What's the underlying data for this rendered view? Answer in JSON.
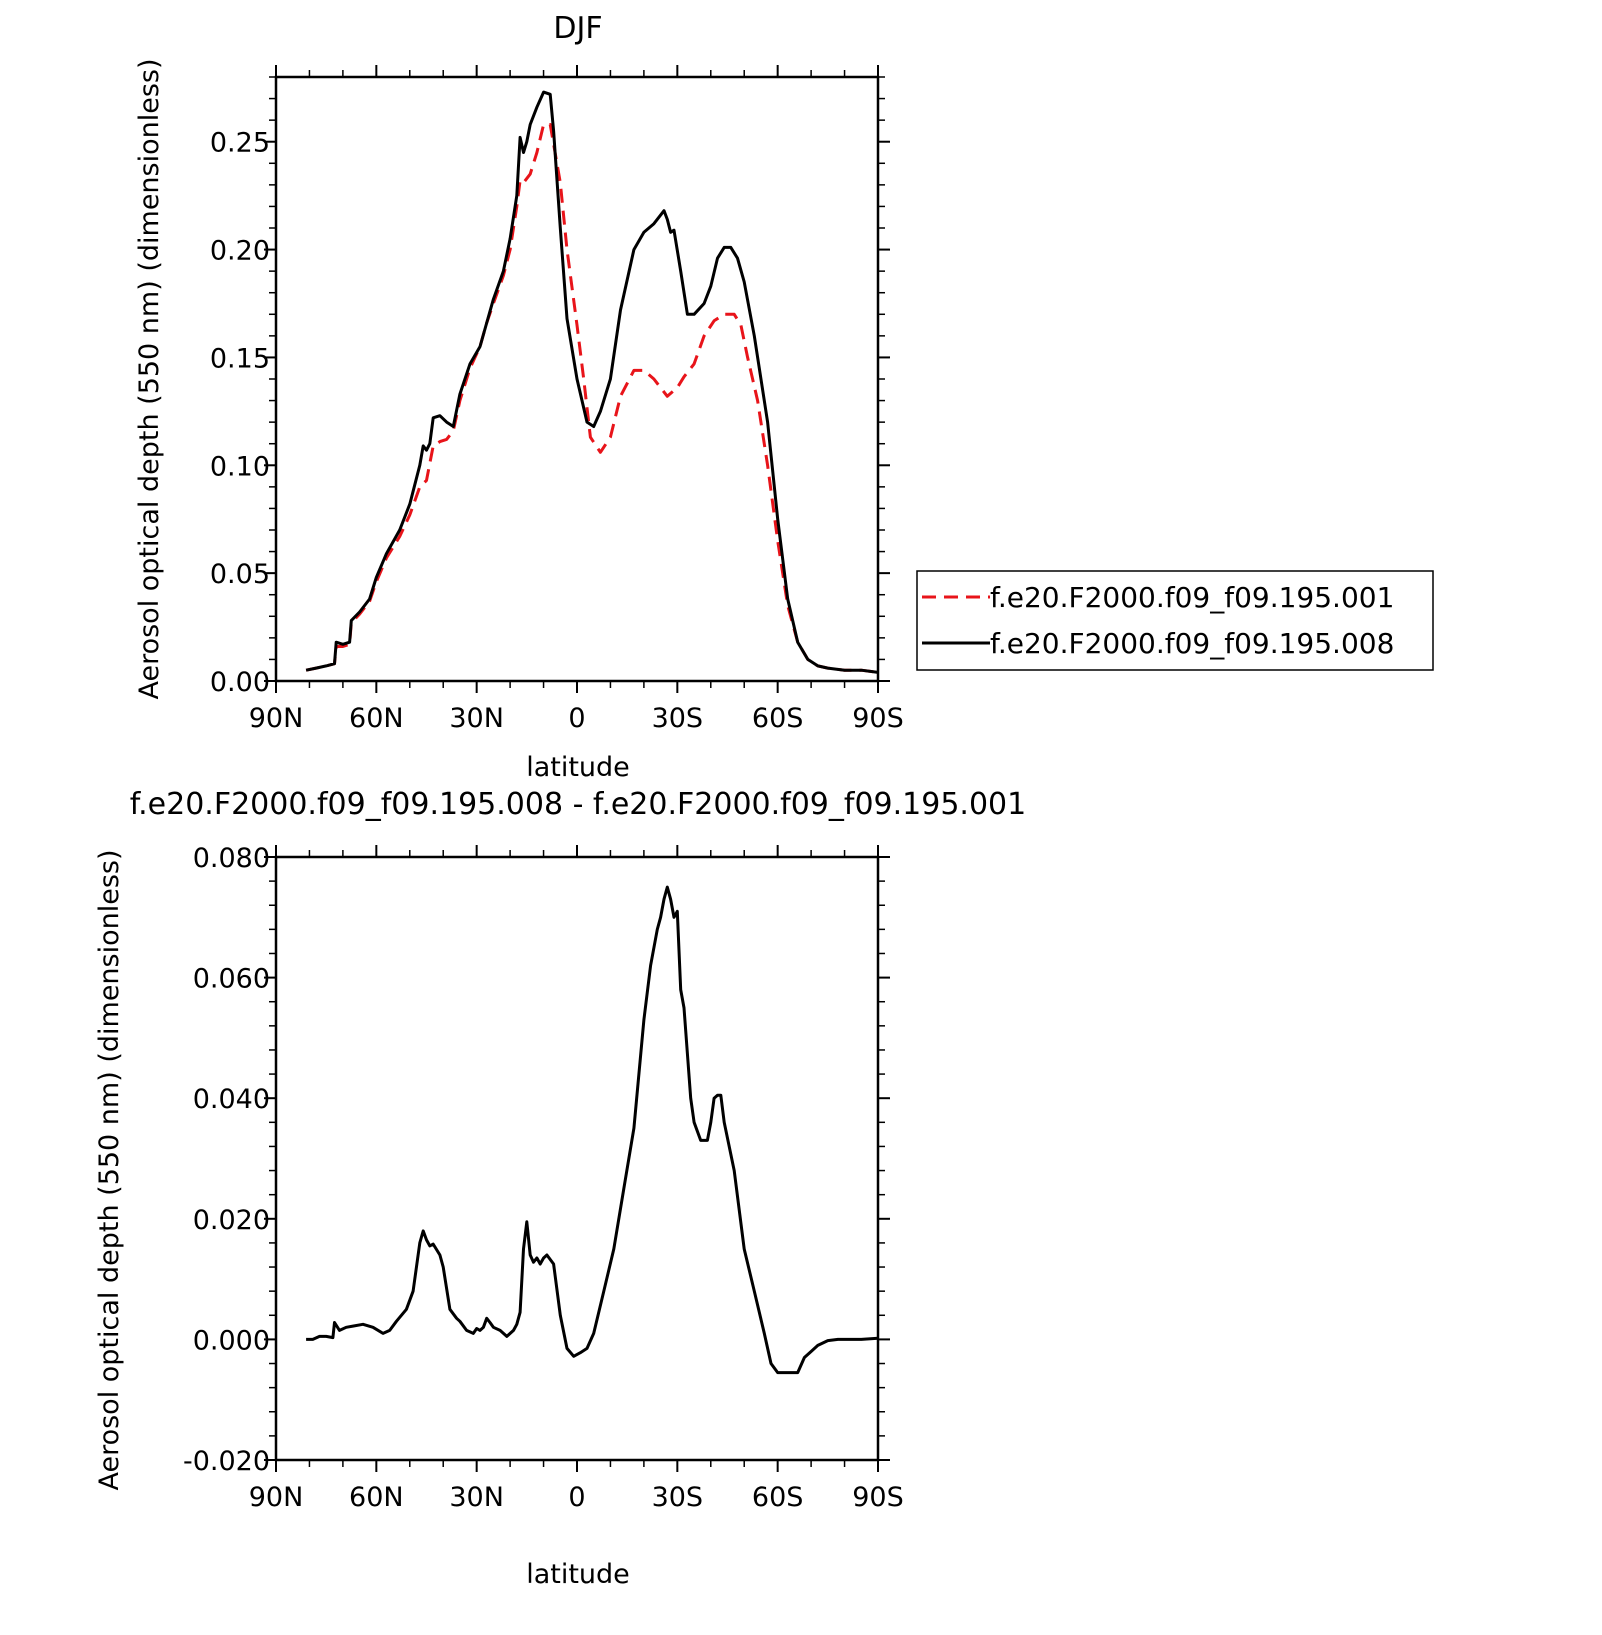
{
  "chart_data": [
    {
      "type": "line",
      "title": "DJF",
      "xlabel": "latitude",
      "ylabel": "Aerosol optical depth (550 nm) (dimensionless)",
      "xlim": [
        90,
        -90
      ],
      "ylim": [
        0,
        0.28
      ],
      "x_ticks": [
        90,
        60,
        30,
        0,
        -30,
        -60,
        -90
      ],
      "x_tick_labels": [
        "90N",
        "60N",
        "30N",
        "0",
        "30S",
        "60S",
        "90S"
      ],
      "y_ticks": [
        0,
        0.05,
        0.1,
        0.15,
        0.2,
        0.25
      ],
      "y_tick_labels": [
        "0.00",
        "0.05",
        "0.10",
        "0.15",
        "0.20",
        "0.25"
      ],
      "legend_position": "right",
      "series": [
        {
          "name": "f.e20.F2000.f09_f09.195.001",
          "color": "#e8141a",
          "dash": "dashed",
          "x": [
            81,
            78,
            75,
            72.5,
            72,
            70,
            68,
            67.5,
            65,
            62,
            60,
            57,
            53,
            50,
            47,
            45,
            43,
            41,
            39,
            37,
            35,
            32,
            29,
            27,
            25,
            22,
            20,
            18,
            17,
            16,
            14,
            12,
            10,
            8,
            5,
            3,
            0,
            -2,
            -4,
            -7,
            -10,
            -13,
            -17,
            -20,
            -23,
            -27,
            -30,
            -32,
            -35,
            -38,
            -41,
            -44,
            -47,
            -49,
            -51,
            -54,
            -57,
            -60,
            -63,
            -66,
            -69,
            -72,
            -75,
            -80,
            -85,
            -90
          ],
          "y": [
            0.005,
            0.006,
            0.007,
            0.008,
            0.016,
            0.016,
            0.017,
            0.027,
            0.031,
            0.037,
            0.046,
            0.057,
            0.067,
            0.077,
            0.09,
            0.093,
            0.109,
            0.111,
            0.112,
            0.116,
            0.13,
            0.145,
            0.155,
            0.166,
            0.175,
            0.188,
            0.2,
            0.22,
            0.232,
            0.231,
            0.235,
            0.245,
            0.258,
            0.258,
            0.231,
            0.2,
            0.165,
            0.14,
            0.113,
            0.106,
            0.113,
            0.132,
            0.144,
            0.144,
            0.14,
            0.132,
            0.136,
            0.141,
            0.147,
            0.16,
            0.167,
            0.17,
            0.17,
            0.165,
            0.15,
            0.13,
            0.1,
            0.065,
            0.035,
            0.018,
            0.01,
            0.007,
            0.006,
            0.005,
            0.005,
            0.004
          ]
        },
        {
          "name": "f.e20.F2000.f09_f09.195.008",
          "color": "#000000",
          "dash": "solid",
          "x": [
            81,
            78,
            75,
            72.5,
            72,
            70,
            68,
            67.5,
            65,
            62,
            60,
            57,
            53,
            50,
            47,
            46,
            45,
            44,
            43,
            41,
            39,
            37,
            35,
            32,
            29,
            27,
            25,
            22,
            20,
            18,
            17,
            16,
            15,
            14,
            12,
            10,
            8,
            7,
            5,
            3,
            0,
            -3,
            -5,
            -7,
            -10,
            -13,
            -17,
            -20,
            -23,
            -25,
            -26,
            -27,
            -28,
            -29,
            -31,
            -33,
            -35,
            -38,
            -40,
            -42,
            -44,
            -46,
            -48,
            -50,
            -53,
            -57,
            -60,
            -63,
            -66,
            -69,
            -72,
            -75,
            -80,
            -85,
            -90
          ],
          "y": [
            0.005,
            0.006,
            0.007,
            0.008,
            0.018,
            0.017,
            0.018,
            0.028,
            0.032,
            0.038,
            0.048,
            0.059,
            0.07,
            0.082,
            0.1,
            0.109,
            0.107,
            0.11,
            0.122,
            0.123,
            0.12,
            0.118,
            0.133,
            0.147,
            0.155,
            0.166,
            0.177,
            0.19,
            0.205,
            0.225,
            0.252,
            0.245,
            0.25,
            0.258,
            0.266,
            0.273,
            0.272,
            0.255,
            0.21,
            0.168,
            0.14,
            0.12,
            0.118,
            0.125,
            0.14,
            0.172,
            0.2,
            0.208,
            0.212,
            0.216,
            0.218,
            0.214,
            0.208,
            0.209,
            0.19,
            0.17,
            0.17,
            0.175,
            0.183,
            0.196,
            0.201,
            0.201,
            0.196,
            0.185,
            0.16,
            0.12,
            0.075,
            0.038,
            0.018,
            0.01,
            0.007,
            0.006,
            0.005,
            0.005,
            0.004
          ]
        }
      ]
    },
    {
      "type": "line",
      "title": "f.e20.F2000.f09_f09.195.008 - f.e20.F2000.f09_f09.195.001",
      "xlabel": "latitude",
      "ylabel": "Aerosol optical depth (550 nm) (dimensionless)",
      "xlim": [
        90,
        -90
      ],
      "ylim": [
        -0.02,
        0.08
      ],
      "x_ticks": [
        90,
        60,
        30,
        0,
        -30,
        -60,
        -90
      ],
      "x_tick_labels": [
        "90N",
        "60N",
        "30N",
        "0",
        "30S",
        "60S",
        "90S"
      ],
      "y_ticks": [
        -0.02,
        0,
        0.02,
        0.04,
        0.06,
        0.08
      ],
      "y_tick_labels": [
        "-0.020",
        "0.000",
        "0.020",
        "0.040",
        "0.060",
        "0.080"
      ],
      "series": [
        {
          "color": "#000000",
          "dash": "solid",
          "x": [
            81,
            79,
            77,
            75,
            73,
            72.5,
            71,
            69,
            67,
            64,
            61,
            58,
            56,
            54,
            51,
            49,
            47,
            46,
            45,
            44,
            43,
            41,
            40,
            38,
            36,
            35,
            33,
            31,
            30,
            29,
            28,
            27,
            26,
            25,
            23,
            21,
            19,
            18,
            17,
            16,
            15,
            14,
            13,
            12,
            11,
            10,
            9,
            7,
            5,
            3,
            1,
            -1,
            -3,
            -5,
            -8,
            -11,
            -14,
            -17,
            -20,
            -22,
            -24,
            -25,
            -26,
            -27,
            -28,
            -29,
            -30,
            -31,
            -32,
            -34,
            -35,
            -37,
            -39,
            -40,
            -41,
            -42,
            -43,
            -44,
            -47,
            -50,
            -53,
            -56,
            -58,
            -60,
            -62,
            -64,
            -66,
            -68,
            -70,
            -72,
            -75,
            -78,
            -81,
            -85,
            -90
          ],
          "y": [
            0,
            0,
            0.0005,
            0.0005,
            0.0003,
            0.0028,
            0.0015,
            0.002,
            0.0022,
            0.0025,
            0.002,
            0.001,
            0.0015,
            0.003,
            0.005,
            0.008,
            0.016,
            0.018,
            0.0165,
            0.0155,
            0.0158,
            0.014,
            0.012,
            0.005,
            0.0035,
            0.003,
            0.0015,
            0.001,
            0.0018,
            0.0015,
            0.002,
            0.0035,
            0.0028,
            0.002,
            0.0015,
            0.0005,
            0.0015,
            0.0025,
            0.0045,
            0.015,
            0.0195,
            0.014,
            0.0128,
            0.0135,
            0.0125,
            0.0135,
            0.014,
            0.0125,
            0.004,
            -0.0015,
            -0.0028,
            -0.0022,
            -0.0015,
            0.001,
            0.008,
            0.015,
            0.025,
            0.035,
            0.053,
            0.062,
            0.068,
            0.07,
            0.073,
            0.075,
            0.073,
            0.07,
            0.071,
            0.058,
            0.055,
            0.04,
            0.036,
            0.033,
            0.033,
            0.036,
            0.04,
            0.0405,
            0.0405,
            0.036,
            0.028,
            0.015,
            0.008,
            0.001,
            -0.004,
            -0.0055,
            -0.0055,
            -0.0055,
            -0.0055,
            -0.003,
            -0.002,
            -0.001,
            -0.0002,
            0,
            0,
            0,
            0.0002
          ]
        }
      ]
    }
  ]
}
